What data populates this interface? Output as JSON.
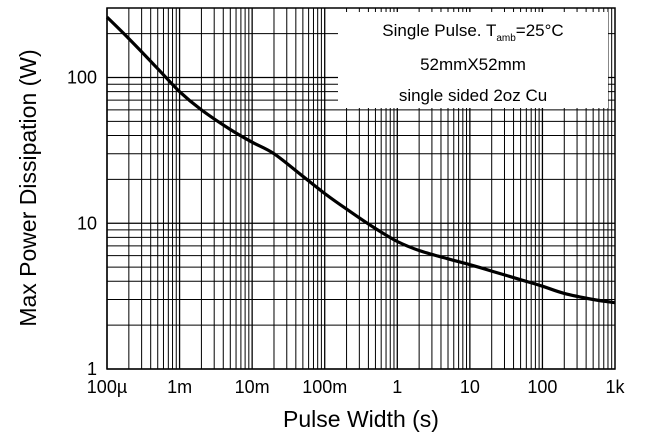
{
  "chart_data": {
    "type": "line",
    "xlabel": "Pulse Width (s)",
    "ylabel": "Max Power Dissipation (W)",
    "x_scale": "log",
    "y_scale": "log",
    "xlim": [
      0.0001,
      1000
    ],
    "ylim": [
      1,
      300
    ],
    "grid": true,
    "x_ticks": [
      {
        "value": 0.0001,
        "label": "100µ"
      },
      {
        "value": 0.001,
        "label": "1m"
      },
      {
        "value": 0.01,
        "label": "10m"
      },
      {
        "value": 0.1,
        "label": "100m"
      },
      {
        "value": 1,
        "label": "1"
      },
      {
        "value": 10,
        "label": "10"
      },
      {
        "value": 100,
        "label": "100"
      },
      {
        "value": 1000,
        "label": "1k"
      }
    ],
    "y_ticks": [
      {
        "value": 1,
        "label": "1"
      },
      {
        "value": 10,
        "label": "10"
      },
      {
        "value": 100,
        "label": "100"
      }
    ],
    "annotation": {
      "line1_prefix": "Single Pulse. T",
      "line1_sub": "amb",
      "line1_suffix": "=25°C",
      "line2": "52mmX52mm",
      "line3": "single sided 2oz Cu"
    },
    "series": [
      {
        "color": "#000000",
        "x": [
          0.0001,
          0.0002,
          0.0005,
          0.001,
          0.002,
          0.005,
          0.01,
          0.02,
          0.05,
          0.1,
          0.2,
          0.5,
          1,
          2,
          5,
          10,
          20,
          50,
          100,
          200,
          500,
          1000
        ],
        "y": [
          260,
          185,
          115,
          80,
          60,
          44,
          36,
          30,
          21,
          16,
          12.5,
          9.2,
          7.5,
          6.5,
          5.7,
          5.2,
          4.7,
          4.1,
          3.7,
          3.3,
          3.0,
          2.85
        ]
      }
    ]
  }
}
